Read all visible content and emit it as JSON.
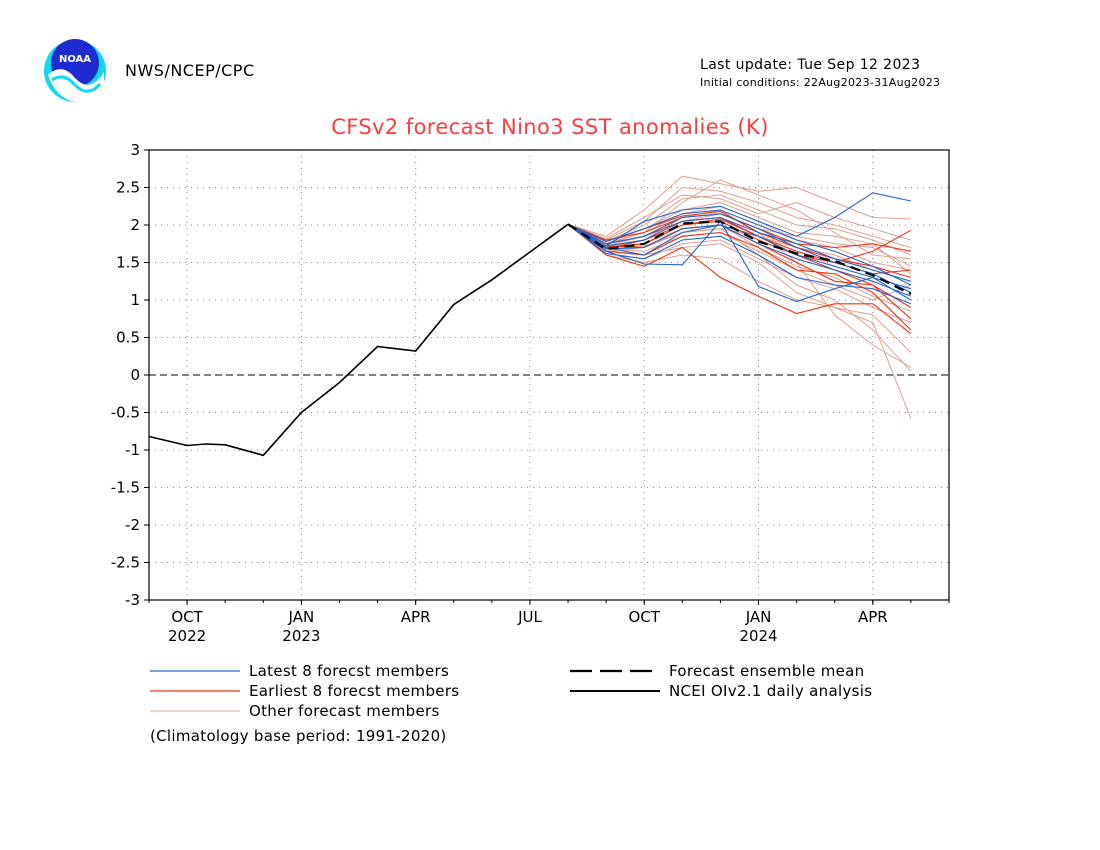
{
  "header": {
    "organization": "NWS/NCEP/CPC",
    "last_update": "Last update: Tue Sep 12 2023",
    "initial_conditions": "Initial conditions: 22Aug2023-31Aug2023",
    "logo_text": "NOAA"
  },
  "colors": {
    "title": "#ff3b3b",
    "latest": "#2266cc",
    "earliest": "#ee3311",
    "other": "#dda090",
    "observed": "#000000",
    "logo_blue": "#1f2bd1",
    "logo_cyan": "#10d8f0"
  },
  "footnote": "(Climatology base period: 1991-2020)",
  "chart_data": {
    "type": "line",
    "title": "CFSv2 forecast Nino3 SST anomalies (K)",
    "ylim": [
      -3,
      3
    ],
    "yticks": [
      "3",
      "2.5",
      "2",
      "1.5",
      "1",
      "0.5",
      "0",
      "-0.5",
      "-1",
      "-1.5",
      "-2",
      "-2.5",
      "-3"
    ],
    "xlim": [
      0,
      21
    ],
    "xticks": [
      {
        "pos": 1,
        "label": "OCT",
        "year": "2022"
      },
      {
        "pos": 4,
        "label": "JAN",
        "year": "2023"
      },
      {
        "pos": 7,
        "label": "APR",
        "year": ""
      },
      {
        "pos": 10,
        "label": "JUL",
        "year": ""
      },
      {
        "pos": 13,
        "label": "OCT",
        "year": ""
      },
      {
        "pos": 16,
        "label": "JAN",
        "year": "2024"
      },
      {
        "pos": 19,
        "label": "APR",
        "year": ""
      }
    ],
    "grid": true,
    "zero_line": "dashed",
    "legend": [
      {
        "label": "Latest 8 forecst members",
        "style": "latest"
      },
      {
        "label": "Earliest 8 forecst members",
        "style": "earliest"
      },
      {
        "label": "Other forecast members",
        "style": "other"
      },
      {
        "label": "Forecast ensemble mean",
        "style": "mean"
      },
      {
        "label": "NCEI OIv2.1 daily analysis",
        "style": "observed"
      }
    ],
    "observed": {
      "x": [
        0,
        1,
        1.5,
        2,
        3,
        4,
        5,
        6,
        7,
        8,
        9,
        10,
        11
      ],
      "y": [
        -0.82,
        -0.94,
        -0.92,
        -0.93,
        -1.07,
        -0.5,
        -0.1,
        0.38,
        0.32,
        0.94,
        1.27,
        1.64,
        2.01
      ]
    },
    "forecast_x": [
      11,
      12,
      13,
      14,
      15,
      16,
      17,
      18,
      19,
      20
    ],
    "ensemble_mean": [
      2.01,
      1.68,
      1.75,
      2.02,
      2.05,
      1.78,
      1.62,
      1.52,
      1.33,
      1.08
    ],
    "latest_members": [
      [
        2.01,
        1.72,
        2.05,
        2.2,
        2.25,
        2.05,
        1.85,
        2.1,
        2.43,
        2.32
      ],
      [
        2.01,
        1.65,
        1.48,
        1.47,
        2.05,
        1.18,
        0.98,
        1.15,
        1.3,
        1.0
      ],
      [
        2.01,
        1.78,
        1.95,
        2.15,
        2.2,
        2.0,
        1.8,
        1.65,
        1.45,
        1.2
      ],
      [
        2.01,
        1.7,
        1.6,
        1.9,
        2.0,
        1.75,
        1.55,
        1.4,
        1.25,
        1.05
      ],
      [
        2.01,
        1.62,
        1.55,
        1.8,
        1.85,
        1.6,
        1.3,
        1.2,
        1.15,
        0.95
      ],
      [
        2.01,
        1.75,
        1.85,
        2.1,
        2.15,
        1.95,
        1.7,
        1.5,
        1.35,
        1.1
      ],
      [
        2.01,
        1.68,
        1.7,
        1.95,
        2.0,
        1.85,
        1.6,
        1.45,
        1.3,
        1.15
      ],
      [
        2.01,
        1.72,
        1.8,
        2.05,
        2.1,
        1.9,
        1.75,
        1.55,
        1.4,
        1.25
      ]
    ],
    "earliest_members": [
      [
        2.01,
        1.8,
        1.9,
        2.1,
        2.15,
        1.95,
        1.75,
        1.7,
        1.75,
        1.65
      ],
      [
        2.01,
        1.6,
        1.45,
        1.7,
        1.3,
        1.05,
        0.82,
        0.95,
        0.95,
        0.55
      ],
      [
        2.01,
        1.75,
        1.85,
        2.05,
        2.1,
        1.85,
        1.6,
        1.4,
        1.2,
        0.75
      ],
      [
        2.01,
        1.7,
        1.75,
        2.0,
        2.05,
        1.8,
        1.6,
        1.5,
        1.65,
        1.93
      ],
      [
        2.01,
        1.65,
        1.6,
        1.85,
        1.9,
        1.7,
        1.4,
        1.35,
        1.1,
        0.6
      ],
      [
        2.01,
        1.78,
        1.95,
        2.12,
        2.18,
        1.9,
        1.7,
        1.55,
        1.45,
        1.3
      ],
      [
        2.01,
        1.72,
        1.7,
        1.95,
        2.0,
        1.75,
        1.5,
        1.25,
        1.2,
        0.9
      ],
      [
        2.01,
        1.68,
        1.8,
        2.0,
        2.08,
        1.85,
        1.65,
        1.5,
        1.35,
        1.4
      ]
    ],
    "other_members": [
      [
        2.01,
        1.85,
        2.2,
        2.65,
        2.55,
        2.45,
        2.5,
        2.3,
        2.1,
        2.08
      ],
      [
        2.01,
        1.75,
        1.9,
        2.3,
        2.6,
        2.4,
        2.2,
        1.9,
        1.6,
        1.55
      ],
      [
        2.01,
        1.6,
        1.5,
        1.6,
        1.55,
        1.25,
        1.0,
        0.9,
        0.7,
        -0.58
      ],
      [
        2.01,
        1.7,
        1.8,
        2.1,
        2.2,
        1.9,
        1.5,
        0.8,
        0.4,
        0.1
      ],
      [
        2.01,
        1.65,
        1.7,
        1.9,
        1.95,
        1.6,
        1.2,
        1.0,
        0.6,
        0.05
      ],
      [
        2.01,
        1.8,
        2.05,
        2.5,
        2.45,
        2.3,
        2.1,
        2.0,
        1.85,
        1.7
      ],
      [
        2.01,
        1.72,
        1.85,
        2.05,
        2.15,
        1.95,
        1.85,
        1.75,
        1.7,
        1.45
      ],
      [
        2.01,
        1.78,
        2.0,
        2.35,
        2.4,
        2.2,
        2.0,
        1.95,
        1.8,
        1.6
      ],
      [
        2.01,
        1.62,
        1.55,
        1.75,
        1.8,
        1.55,
        1.3,
        1.15,
        0.9,
        0.7
      ],
      [
        2.01,
        1.7,
        1.75,
        1.95,
        2.0,
        1.7,
        1.45,
        1.3,
        1.05,
        0.85
      ],
      [
        2.01,
        1.75,
        1.95,
        2.2,
        2.3,
        2.1,
        1.9,
        1.85,
        1.75,
        1.35
      ],
      [
        2.01,
        1.68,
        1.65,
        1.85,
        1.9,
        1.65,
        1.4,
        1.2,
        1.0,
        1.2
      ],
      [
        2.01,
        1.82,
        2.1,
        2.4,
        2.35,
        2.15,
        2.3,
        2.1,
        1.95,
        1.8
      ],
      [
        2.01,
        1.66,
        1.6,
        1.7,
        1.75,
        1.5,
        1.1,
        0.9,
        0.8,
        0.3
      ],
      [
        2.01,
        1.74,
        1.9,
        2.15,
        2.25,
        2.05,
        1.8,
        1.7,
        1.5,
        1.4
      ],
      [
        2.01,
        1.7,
        1.72,
        1.9,
        1.95,
        1.85,
        1.7,
        1.6,
        1.4,
        1.25
      ]
    ]
  }
}
